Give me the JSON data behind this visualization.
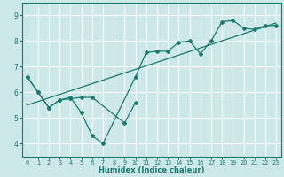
{
  "title": "",
  "xlabel": "Humidex (Indice chaleur)",
  "ylabel": "",
  "background_color": "#cce8e8",
  "grid_color": "#ffffff",
  "line_color": "#1a7a6e",
  "xlim": [
    -0.5,
    23.5
  ],
  "ylim": [
    3.5,
    9.5
  ],
  "xticks": [
    0,
    1,
    2,
    3,
    4,
    5,
    6,
    7,
    8,
    9,
    10,
    11,
    12,
    13,
    14,
    15,
    16,
    17,
    18,
    19,
    20,
    21,
    22,
    23
  ],
  "yticks": [
    4,
    5,
    6,
    7,
    8,
    9
  ],
  "line1_x": [
    0,
    1,
    2,
    3,
    4,
    5,
    6,
    7,
    10,
    11,
    12,
    13,
    14,
    15,
    16,
    17,
    18,
    19,
    20,
    21,
    22,
    23
  ],
  "line1_y": [
    6.6,
    6.0,
    5.4,
    5.7,
    5.8,
    5.2,
    4.3,
    4.0,
    6.6,
    7.55,
    7.6,
    7.6,
    7.95,
    8.0,
    7.5,
    8.0,
    8.75,
    8.8,
    8.5,
    8.45,
    8.6,
    8.6
  ],
  "line2_x": [
    0,
    1,
    2,
    3,
    4,
    5,
    6,
    9,
    10
  ],
  "line2_y": [
    6.6,
    6.0,
    5.4,
    5.7,
    5.75,
    5.8,
    5.8,
    4.8,
    5.6
  ],
  "trend_x": [
    0,
    23
  ],
  "trend_y": [
    5.5,
    8.7
  ]
}
